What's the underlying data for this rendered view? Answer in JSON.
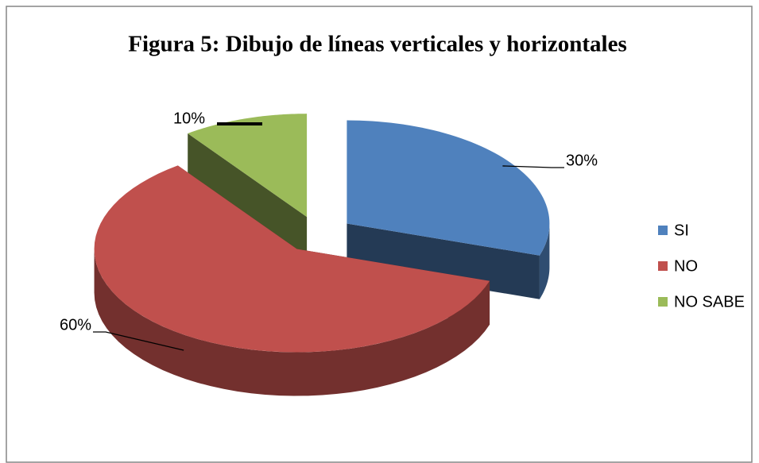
{
  "chart_data": {
    "type": "pie3d",
    "title": "Figura 5: Dibujo de líneas verticales y horizontales",
    "categories": [
      "SI",
      "NO",
      "NO SABE"
    ],
    "values": [
      30,
      60,
      10
    ],
    "value_labels": [
      "30%",
      "60%",
      "10%"
    ],
    "colors": [
      "#4f81bd",
      "#c0504d",
      "#9bbb59"
    ],
    "legend": "right"
  }
}
